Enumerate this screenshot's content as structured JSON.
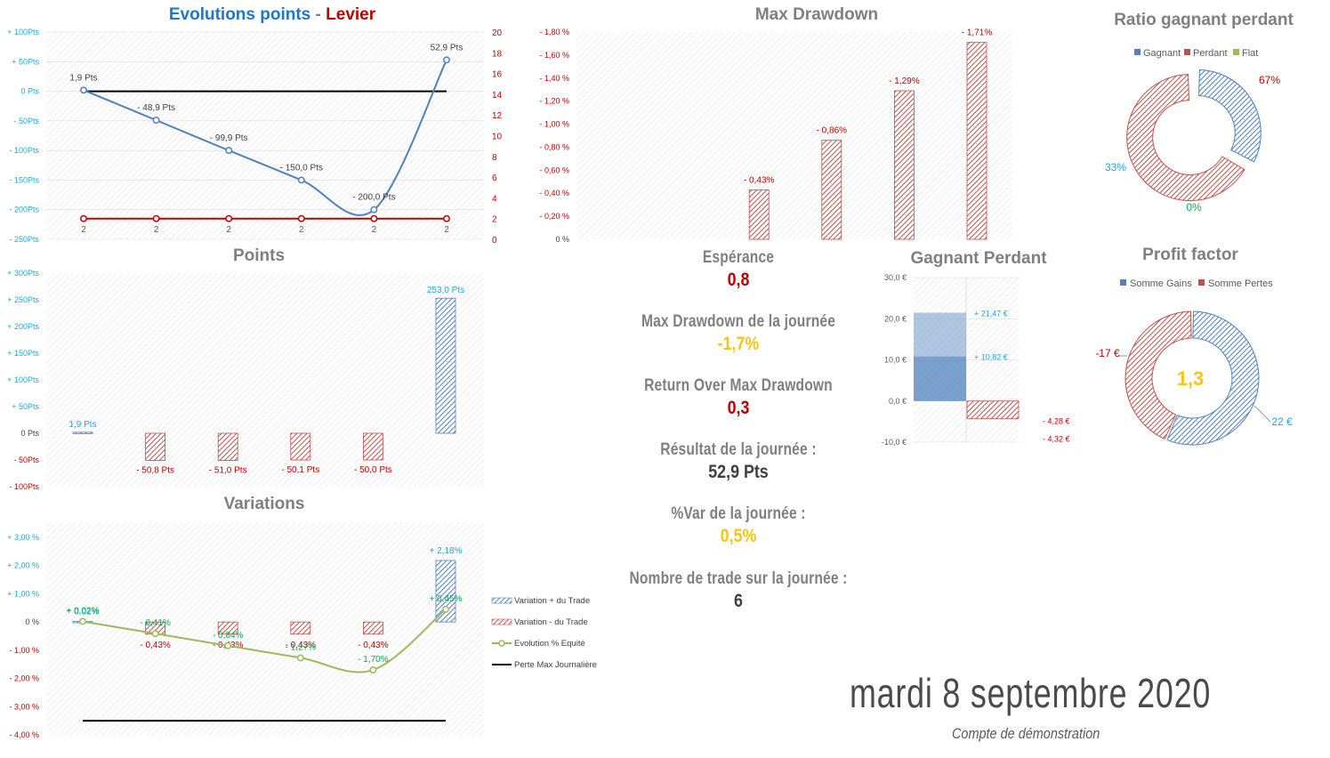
{
  "date": "mardi 8 septembre 2020",
  "account": "Compte de démonstration",
  "kpis": {
    "esperance": {
      "label": "Espérance",
      "value": "0,8"
    },
    "max_dd_day": {
      "label": "Max Drawdown de la journée",
      "value": "-1,7%"
    },
    "return_over_dd": {
      "label": "Return Over Max Drawdown",
      "value": "0,3"
    },
    "resultat": {
      "label": "Résultat de la journée :",
      "value": "52,9 Pts"
    },
    "var_day": {
      "label": "%Var de la journée :",
      "value": "0,5%"
    },
    "nb_trade": {
      "label": "Nombre de trade sur la journée :",
      "value": "6"
    }
  },
  "colors": {
    "blue": "#4f81bd",
    "blue_text": "#1fa9d6",
    "red": "#c0504d",
    "dark_red": "#c00000",
    "green": "#9bbb59",
    "gold": "#f5c518",
    "grid": "#d9d9d9",
    "text": "#7f7f7f",
    "green_text": "#00b050"
  },
  "chart_data": [
    {
      "id": "evolutions",
      "type": "line",
      "title_part1": "Evolutions points",
      "title_sep": " - ",
      "title_part2": "Levier",
      "categories": [
        "2",
        "2",
        "2",
        "2",
        "2",
        "2"
      ],
      "series": [
        {
          "name": "Points",
          "values": [
            1.9,
            -48.9,
            -99.9,
            -150.0,
            -200.0,
            52.9
          ],
          "labels": [
            "1,9 Pts",
            "- 48,9 Pts",
            "- 99,9 Pts",
            "- 150,0 Pts",
            "- 200,0 Pts",
            "52,9 Pts"
          ]
        },
        {
          "name": "Levier",
          "axis": "right",
          "values": [
            2,
            2,
            2,
            2,
            2,
            2
          ]
        },
        {
          "name": "Zéro",
          "values": [
            0,
            0,
            0,
            0,
            0,
            0
          ]
        }
      ],
      "ylim": [
        -250,
        100
      ],
      "y_ticks": [
        100,
        50,
        0,
        -50,
        -100,
        -150,
        -200,
        -250
      ],
      "y_tick_labels": [
        "+ 100Pts",
        "+ 50Pts",
        "0 Pts",
        "- 50Pts",
        "- 100Pts",
        "- 150Pts",
        "- 200Pts",
        "- 250Pts"
      ],
      "y2lim": [
        0,
        20
      ],
      "y2_ticks": [
        0,
        2,
        4,
        6,
        8,
        10,
        12,
        14,
        16,
        18,
        20
      ],
      "y2_tick_labels": [
        "0",
        "2",
        "4",
        "6",
        "8",
        "10",
        "12",
        "14",
        "16",
        "18",
        "20"
      ]
    },
    {
      "id": "points",
      "type": "bar",
      "title": "Points",
      "values": [
        1.9,
        -50.8,
        -51.0,
        -50.1,
        -50.0,
        253.0
      ],
      "labels": [
        "1,9 Pts",
        "- 50,8 Pts",
        "- 51,0 Pts",
        "- 50,1 Pts",
        "- 50,0 Pts",
        "253,0 Pts"
      ],
      "ylim": [
        -100,
        300
      ],
      "y_ticks": [
        300,
        250,
        200,
        150,
        100,
        50,
        0,
        -50,
        -100
      ],
      "y_tick_labels": [
        "+ 300Pts",
        "+ 250Pts",
        "+ 200Pts",
        "+ 150Pts",
        "+ 100Pts",
        "+ 50Pts",
        "0 Pts",
        "- 50Pts",
        "- 100Pts"
      ]
    },
    {
      "id": "variations",
      "type": "bar",
      "title": "Variations",
      "series": [
        {
          "name": "Variation + du Trade",
          "values": [
            0.02,
            0,
            0,
            0,
            0,
            2.18
          ],
          "labels": [
            "+ 0,02%",
            "",
            "",
            "",
            "",
            "+ 2,18%"
          ]
        },
        {
          "name": "Variation - du Trade",
          "values": [
            0,
            -0.43,
            -0.43,
            -0.43,
            -0.43,
            0
          ],
          "labels": [
            "",
            "- 0,43%",
            "- 0,43%",
            "- 0,43%",
            "- 0,43%",
            ""
          ]
        },
        {
          "name": "Evolution % Equité",
          "type": "line",
          "values": [
            0.02,
            -0.41,
            -0.84,
            -1.27,
            -1.7,
            0.45
          ],
          "labels": [
            "+ 0,02%",
            "- 0,41%",
            "- 0,84%",
            "- 1,27%",
            "- 1,70%",
            "+ 0,45%"
          ]
        },
        {
          "name": "Perte Max Journalière",
          "type": "line",
          "values": [
            -3.5,
            -3.5,
            -3.5,
            -3.5,
            -3.5,
            -3.5
          ]
        }
      ],
      "ylim": [
        -4,
        3
      ],
      "y_ticks": [
        3,
        2,
        1,
        0,
        -1,
        -2,
        -3,
        -4
      ],
      "y_tick_labels": [
        "+ 3,00 %",
        "+ 2,00 %",
        "+ 1,00 %",
        "0 %",
        "- 1,00 %",
        "- 2,00 %",
        "- 3,00 %",
        "- 4,00 %"
      ]
    },
    {
      "id": "max_drawdown",
      "type": "bar",
      "title": "Max Drawdown",
      "values": [
        0,
        0,
        0.43,
        0.86,
        1.29,
        1.71
      ],
      "labels": [
        "",
        "",
        "- 0,43%",
        "- 0,86%",
        "- 1,29%",
        "- 1,71%"
      ],
      "ylim": [
        0,
        1.8
      ],
      "y_ticks": [
        1.8,
        1.6,
        1.4,
        1.2,
        1.0,
        0.8,
        0.6,
        0.4,
        0.2,
        0
      ],
      "y_tick_labels": [
        "- 1,80 %",
        "- 1,60 %",
        "- 1,40 %",
        "- 1,20 %",
        "- 1,00 %",
        "- 0,80 %",
        "- 0,60 %",
        "- 0,40 %",
        "- 0,20 %",
        "0 %"
      ]
    },
    {
      "id": "ratio",
      "type": "pie",
      "title": "Ratio gagnant perdant",
      "legend": [
        "Gagnant",
        "Perdant",
        "Flat"
      ],
      "values": [
        33,
        67,
        0
      ],
      "labels": [
        "33%",
        "67%",
        "0%"
      ]
    },
    {
      "id": "gagnant_perdant",
      "type": "bar",
      "title": "Gagnant Perdant",
      "series": [
        {
          "name": "Gagnant",
          "values": [
            21.47,
            10.82
          ],
          "labels": [
            "+ 21,47 €",
            "+ 10,82 €"
          ]
        },
        {
          "name": "Perdant",
          "values": [
            -4.28,
            -4.32
          ],
          "labels": [
            "- 4,28 €",
            "- 4,32 €"
          ]
        }
      ],
      "ylim": [
        -10,
        30
      ],
      "y_ticks": [
        30,
        20,
        10,
        0,
        -10
      ],
      "y_tick_labels": [
        "30,0 €",
        "20,0 €",
        "10,0 €",
        "0,0 €",
        "-10,0 €"
      ]
    },
    {
      "id": "profit_factor",
      "type": "pie",
      "title": "Profit factor",
      "legend": [
        "Somme Gains",
        "Somme Pertes"
      ],
      "values": [
        22,
        17
      ],
      "labels": [
        "22 €",
        "-17 €"
      ],
      "center": "1,3"
    }
  ]
}
